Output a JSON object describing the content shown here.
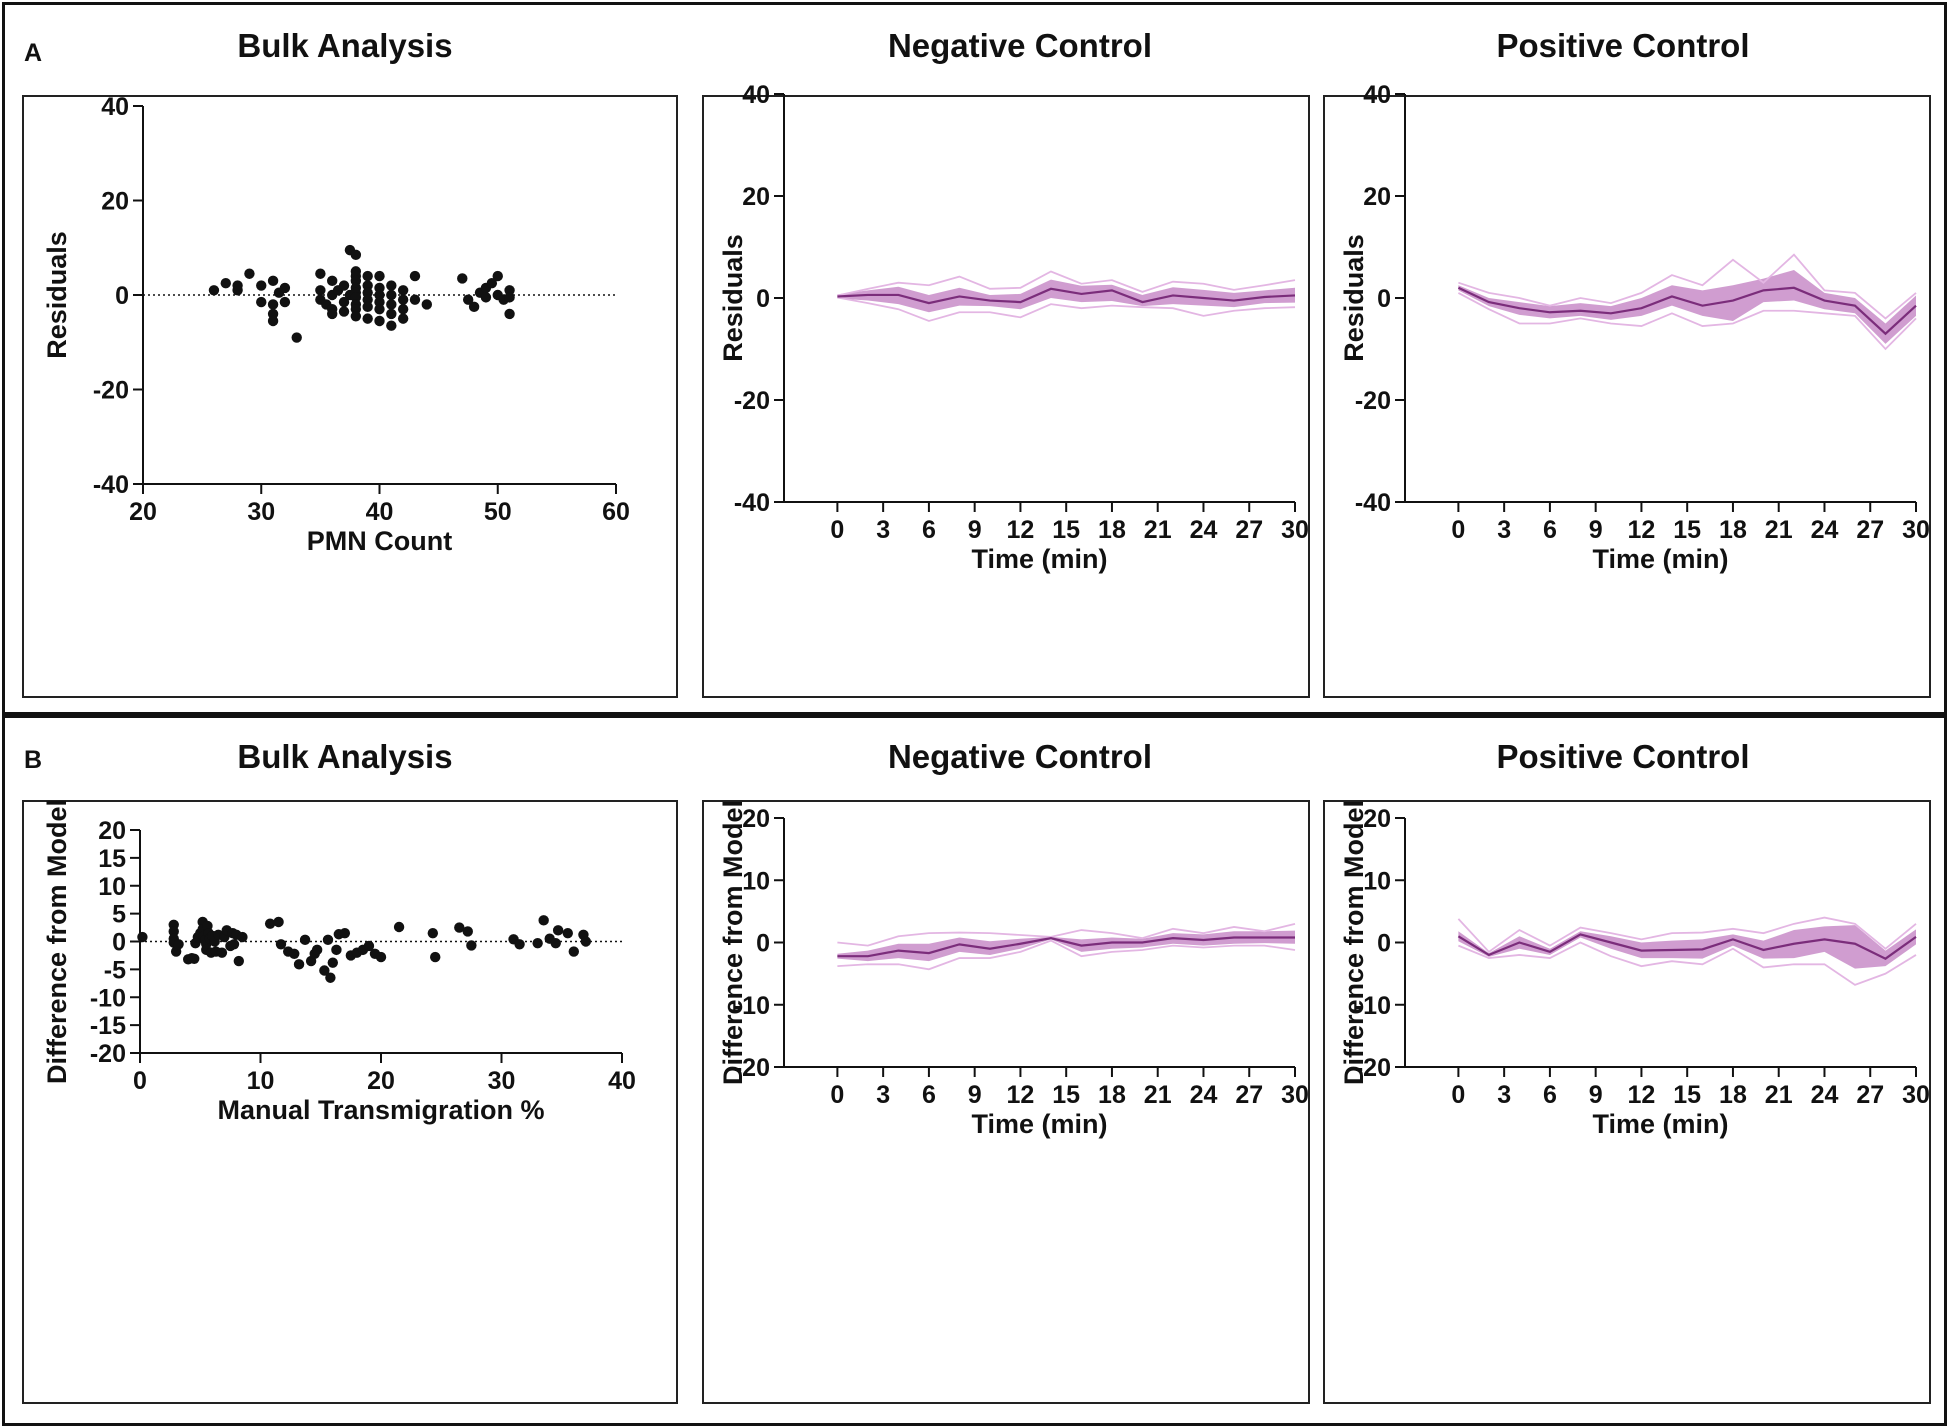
{
  "figure": {
    "panel_a_label": "A",
    "panel_b_label": "B",
    "colors": {
      "series": "#7b2d7b",
      "band": "#c88cc8",
      "replicate": "#e3b6e3",
      "points": "#111111",
      "frame": "#111111"
    }
  },
  "chart_data": [
    {
      "id": "a-bulk",
      "type": "scatter",
      "title": "Bulk Analysis",
      "xlabel": "PMN Count",
      "ylabel": "Residuals",
      "xlim": [
        20,
        60
      ],
      "ylim": [
        -40,
        40
      ],
      "xticks": [
        20,
        30,
        40,
        50,
        60
      ],
      "yticks": [
        -40,
        -20,
        0,
        20,
        40
      ],
      "zero_line": true,
      "points": [
        [
          26,
          1
        ],
        [
          27,
          2.5
        ],
        [
          28,
          1
        ],
        [
          28,
          2
        ],
        [
          29,
          4.5
        ],
        [
          30,
          2
        ],
        [
          30,
          -1.5
        ],
        [
          31,
          3
        ],
        [
          31,
          -2
        ],
        [
          31,
          -4
        ],
        [
          31,
          -5.5
        ],
        [
          31.5,
          0.5
        ],
        [
          32,
          -1.5
        ],
        [
          32,
          1.5
        ],
        [
          33,
          -9
        ],
        [
          35,
          4.5
        ],
        [
          35,
          1
        ],
        [
          35,
          -1
        ],
        [
          35.5,
          -2
        ],
        [
          36,
          3
        ],
        [
          36,
          0
        ],
        [
          36,
          -3
        ],
        [
          36,
          -4
        ],
        [
          36.5,
          1
        ],
        [
          37,
          -1.5
        ],
        [
          37,
          2
        ],
        [
          37,
          -3.5
        ],
        [
          37.5,
          0
        ],
        [
          37.5,
          9.5
        ],
        [
          38,
          8.5
        ],
        [
          38,
          5
        ],
        [
          38,
          4
        ],
        [
          38,
          3
        ],
        [
          38,
          1.5
        ],
        [
          38,
          0.5
        ],
        [
          38,
          -0.5
        ],
        [
          38,
          -2
        ],
        [
          38,
          -3
        ],
        [
          38,
          -4.5
        ],
        [
          39,
          4
        ],
        [
          39,
          2
        ],
        [
          39,
          0.5
        ],
        [
          39,
          -1
        ],
        [
          39,
          -2.5
        ],
        [
          39,
          -5
        ],
        [
          40,
          4
        ],
        [
          40,
          1.5
        ],
        [
          40,
          0
        ],
        [
          40,
          -1.5
        ],
        [
          40,
          -3
        ],
        [
          40,
          -5.5
        ],
        [
          41,
          2
        ],
        [
          41,
          0
        ],
        [
          41,
          -2
        ],
        [
          41,
          -4
        ],
        [
          41,
          -6.5
        ],
        [
          42,
          1
        ],
        [
          42,
          -1
        ],
        [
          42,
          -3
        ],
        [
          42,
          -5
        ],
        [
          43,
          4
        ],
        [
          43,
          -1
        ],
        [
          44,
          -2
        ],
        [
          47,
          3.5
        ],
        [
          47.5,
          -1
        ],
        [
          48,
          -2.5
        ],
        [
          48.5,
          0.5
        ],
        [
          49,
          1.5
        ],
        [
          49,
          -0.5
        ],
        [
          49.5,
          2.5
        ],
        [
          50,
          4
        ],
        [
          50,
          0
        ],
        [
          50.5,
          -1
        ],
        [
          51,
          1
        ],
        [
          51,
          -0.5
        ],
        [
          51,
          -4
        ]
      ]
    },
    {
      "id": "a-neg",
      "type": "line",
      "title": "Negative Control",
      "xlabel": "Time (min)",
      "ylabel": "Residuals",
      "xlim": [
        -3.5,
        30
      ],
      "ylim": [
        -40,
        40
      ],
      "xticks": [
        0,
        3,
        6,
        9,
        12,
        15,
        18,
        21,
        24,
        27,
        30
      ],
      "yticks": [
        -40,
        -20,
        0,
        20,
        40
      ],
      "x": [
        0,
        2,
        4,
        6,
        8,
        10,
        12,
        14,
        16,
        18,
        20,
        22,
        24,
        26,
        28,
        30
      ],
      "series": [
        {
          "name": "mean",
          "values": [
            0.3,
            0.6,
            0.6,
            -1.0,
            0.3,
            -0.5,
            -0.8,
            1.8,
            0.8,
            1.5,
            -0.8,
            0.5,
            0,
            -0.5,
            0.2,
            0.5
          ]
        }
      ],
      "band_upper": [
        0.7,
        1.5,
        2.2,
        0.6,
        2.0,
        0.6,
        0.8,
        3.6,
        2.4,
        2.6,
        0.6,
        2.1,
        1.6,
        1.0,
        1.5,
        2.0
      ],
      "band_lower": [
        -0.1,
        -0.5,
        -1.2,
        -2.8,
        -1.5,
        -1.6,
        -2.2,
        0.0,
        -0.8,
        -0.6,
        -1.6,
        -1.2,
        -1.5,
        -1.8,
        -1.0,
        -0.9
      ],
      "replicates": [
        [
          0.5,
          1.8,
          3.0,
          2.5,
          4.2,
          1.8,
          2.0,
          5.2,
          2.8,
          3.5,
          1.2,
          3.2,
          2.8,
          1.6,
          2.5,
          3.5
        ],
        [
          0.1,
          -1.0,
          -2.2,
          -4.5,
          -2.8,
          -2.8,
          -3.8,
          -1.2,
          -2.0,
          -1.5,
          -1.8,
          -2.0,
          -3.5,
          -2.5,
          -2.0,
          -1.8
        ]
      ]
    },
    {
      "id": "a-pos",
      "type": "line",
      "title": "Positive Control",
      "xlabel": "Time (min)",
      "ylabel": "Residuals",
      "xlim": [
        -3.5,
        30
      ],
      "ylim": [
        -40,
        40
      ],
      "xticks": [
        0,
        3,
        6,
        9,
        12,
        15,
        18,
        21,
        24,
        27,
        30
      ],
      "yticks": [
        -40,
        -20,
        0,
        20,
        40
      ],
      "x": [
        0,
        2,
        4,
        6,
        8,
        10,
        12,
        14,
        16,
        18,
        20,
        22,
        24,
        26,
        28,
        30
      ],
      "series": [
        {
          "name": "mean",
          "values": [
            2.0,
            -0.8,
            -2.0,
            -2.8,
            -2.5,
            -3.0,
            -2.0,
            0.3,
            -1.5,
            -0.5,
            1.5,
            2.0,
            -0.5,
            -1.5,
            -7.0,
            -1.5
          ]
        }
      ],
      "band_upper": [
        2.5,
        0.0,
        -0.8,
        -1.6,
        -1.0,
        -1.6,
        0.0,
        2.5,
        1.5,
        2.5,
        3.8,
        5.5,
        1.0,
        0.0,
        -5.0,
        0.5
      ],
      "band_lower": [
        1.5,
        -1.6,
        -3.3,
        -4.0,
        -3.5,
        -4.3,
        -3.5,
        -1.5,
        -3.5,
        -4.5,
        -0.8,
        -0.5,
        -2.2,
        -3.0,
        -9.0,
        -3.5
      ],
      "replicates": [
        [
          3.0,
          1.0,
          0.0,
          -1.5,
          0.0,
          -1.0,
          1.0,
          4.5,
          2.5,
          7.5,
          3.0,
          8.5,
          1.5,
          1.0,
          -4.0,
          1.0
        ],
        [
          1.0,
          -2.2,
          -5.0,
          -5.0,
          -4.0,
          -5.0,
          -5.5,
          -3.0,
          -5.5,
          -5.0,
          -2.5,
          -2.5,
          -3.0,
          -3.5,
          -10.0,
          -4.0
        ]
      ]
    },
    {
      "id": "b-bulk",
      "type": "scatter",
      "title": "Bulk Analysis",
      "xlabel": "Manual Transmigration %",
      "ylabel": "Difference from Model",
      "xlim": [
        0,
        40
      ],
      "ylim": [
        -20,
        20
      ],
      "xticks": [
        0,
        10,
        20,
        30,
        40
      ],
      "yticks": [
        -20,
        -15,
        -10,
        -5,
        0,
        5,
        10,
        15,
        20
      ],
      "zero_line": true,
      "points": [
        [
          0.2,
          0.8
        ],
        [
          2.8,
          3.0
        ],
        [
          2.8,
          1.8
        ],
        [
          2.8,
          0.5
        ],
        [
          2.8,
          -0.2
        ],
        [
          3.0,
          -1.8
        ],
        [
          3.2,
          -0.5
        ],
        [
          4.0,
          -3.2
        ],
        [
          4.3,
          -3.0
        ],
        [
          4.5,
          -3.1
        ],
        [
          4.6,
          -0.3
        ],
        [
          4.8,
          0.8
        ],
        [
          5.0,
          1.5
        ],
        [
          5.2,
          3.5
        ],
        [
          5.2,
          2.2
        ],
        [
          5.3,
          1.0
        ],
        [
          5.4,
          0.2
        ],
        [
          5.5,
          -0.5
        ],
        [
          5.5,
          -1.5
        ],
        [
          5.6,
          2.8
        ],
        [
          5.7,
          1.5
        ],
        [
          5.8,
          0.5
        ],
        [
          5.9,
          -2.0
        ],
        [
          6.0,
          1.0
        ],
        [
          6.2,
          0.0
        ],
        [
          6.3,
          -1.8
        ],
        [
          6.5,
          1.2
        ],
        [
          6.8,
          -2.0
        ],
        [
          7.0,
          0.8
        ],
        [
          7.2,
          2.0
        ],
        [
          7.5,
          -0.8
        ],
        [
          7.7,
          1.5
        ],
        [
          7.8,
          -0.5
        ],
        [
          8.0,
          1.2
        ],
        [
          8.2,
          -3.5
        ],
        [
          8.5,
          0.8
        ],
        [
          10.8,
          3.2
        ],
        [
          11.5,
          3.5
        ],
        [
          11.7,
          -0.5
        ],
        [
          12.3,
          -1.8
        ],
        [
          12.8,
          -2.2
        ],
        [
          13.2,
          -4.1
        ],
        [
          13.7,
          0.3
        ],
        [
          14.2,
          -3.5
        ],
        [
          14.5,
          -2.2
        ],
        [
          14.7,
          -1.5
        ],
        [
          15.3,
          -5.2
        ],
        [
          15.6,
          0.3
        ],
        [
          15.8,
          -6.5
        ],
        [
          16.0,
          -3.8
        ],
        [
          16.3,
          -1.5
        ],
        [
          16.5,
          1.3
        ],
        [
          17.0,
          1.5
        ],
        [
          17.5,
          -2.5
        ],
        [
          18.0,
          -2.0
        ],
        [
          18.5,
          -1.5
        ],
        [
          19.0,
          -0.8
        ],
        [
          19.5,
          -2.2
        ],
        [
          20.0,
          -2.8
        ],
        [
          21.5,
          2.6
        ],
        [
          24.3,
          1.5
        ],
        [
          24.5,
          -2.8
        ],
        [
          26.5,
          2.5
        ],
        [
          27.2,
          1.8
        ],
        [
          27.5,
          -0.7
        ],
        [
          31.0,
          0.4
        ],
        [
          31.5,
          -0.5
        ],
        [
          33.0,
          -0.3
        ],
        [
          33.5,
          3.8
        ],
        [
          34.0,
          0.5
        ],
        [
          34.5,
          -0.3
        ],
        [
          34.7,
          2.0
        ],
        [
          35.5,
          1.5
        ],
        [
          36.0,
          -1.8
        ],
        [
          36.8,
          1.2
        ],
        [
          37.0,
          0.0
        ]
      ]
    },
    {
      "id": "b-neg",
      "type": "line",
      "title": "Negative Control",
      "xlabel": "Time (min)",
      "ylabel": "Difference from Model",
      "xlim": [
        -3.5,
        30
      ],
      "ylim": [
        -20,
        20
      ],
      "xticks": [
        0,
        3,
        6,
        9,
        12,
        15,
        18,
        21,
        24,
        27,
        30
      ],
      "yticks": [
        -20,
        -10,
        0,
        10,
        20
      ],
      "x": [
        0,
        2,
        4,
        6,
        8,
        10,
        12,
        14,
        16,
        18,
        20,
        22,
        24,
        26,
        28,
        30
      ],
      "series": [
        {
          "name": "mean",
          "values": [
            -2.2,
            -2.2,
            -1.3,
            -1.7,
            -0.3,
            -1.0,
            -0.2,
            0.7,
            -0.5,
            0.0,
            0.0,
            0.7,
            0.4,
            0.8,
            0.8,
            0.8
          ]
        }
      ],
      "band_upper": [
        -1.8,
        -1.3,
        -0.2,
        -0.2,
        0.8,
        0.2,
        0.6,
        0.9,
        0.5,
        0.8,
        0.6,
        1.5,
        1.3,
        1.8,
        1.8,
        1.9
      ],
      "band_lower": [
        -2.6,
        -3.0,
        -2.5,
        -3.0,
        -1.5,
        -2.0,
        -1.0,
        0.5,
        -1.5,
        -1.0,
        -0.8,
        -0.2,
        -0.5,
        -0.2,
        -0.1,
        -0.2
      ],
      "replicates": [
        [
          0.0,
          -0.5,
          1.0,
          1.5,
          1.6,
          1.5,
          1.2,
          0.9,
          2.0,
          1.5,
          0.7,
          2.2,
          1.5,
          2.5,
          1.8,
          3.0
        ],
        [
          -3.8,
          -3.5,
          -3.5,
          -4.3,
          -2.5,
          -2.5,
          -1.5,
          0.3,
          -2.2,
          -1.5,
          -1.2,
          -0.5,
          -0.8,
          -0.5,
          -0.5,
          -1.2
        ]
      ]
    },
    {
      "id": "b-pos",
      "type": "line",
      "title": "Positive Control",
      "xlabel": "Time (min)",
      "ylabel": "Difference from Model",
      "xlim": [
        -3.5,
        30
      ],
      "ylim": [
        -20,
        20
      ],
      "xticks": [
        0,
        3,
        6,
        9,
        12,
        15,
        18,
        21,
        24,
        27,
        30
      ],
      "yticks": [
        -20,
        -10,
        0,
        10,
        20
      ],
      "x": [
        0,
        2,
        4,
        6,
        8,
        10,
        12,
        14,
        16,
        18,
        20,
        22,
        24,
        26,
        28,
        30
      ],
      "series": [
        {
          "name": "mean",
          "values": [
            1.0,
            -2.0,
            0.0,
            -1.5,
            1.3,
            0.0,
            -1.3,
            -1.2,
            -1.1,
            0.5,
            -1.2,
            -0.2,
            0.5,
            -0.2,
            -2.6,
            0.9
          ]
        }
      ],
      "band_upper": [
        1.8,
        -1.7,
        1.0,
        -1.0,
        1.8,
        1.0,
        0.0,
        0.3,
        0.5,
        1.3,
        0.3,
        2.0,
        2.6,
        2.8,
        -1.3,
        2.1
      ],
      "band_lower": [
        0.2,
        -2.3,
        -1.0,
        -2.0,
        0.8,
        -1.0,
        -2.5,
        -2.5,
        -2.6,
        -0.5,
        -2.6,
        -2.5,
        -1.5,
        -4.2,
        -3.8,
        -0.3
      ],
      "replicates": [
        [
          3.8,
          -1.5,
          2.0,
          -0.5,
          2.4,
          1.5,
          0.5,
          1.5,
          1.6,
          2.2,
          1.5,
          3.0,
          4.0,
          3.0,
          -1.0,
          3.0
        ],
        [
          -0.5,
          -2.5,
          -2.0,
          -2.5,
          0.0,
          -2.2,
          -3.8,
          -3.0,
          -3.5,
          -1.0,
          -4.0,
          -3.5,
          -3.5,
          -6.8,
          -5.0,
          -2.0
        ]
      ]
    }
  ]
}
